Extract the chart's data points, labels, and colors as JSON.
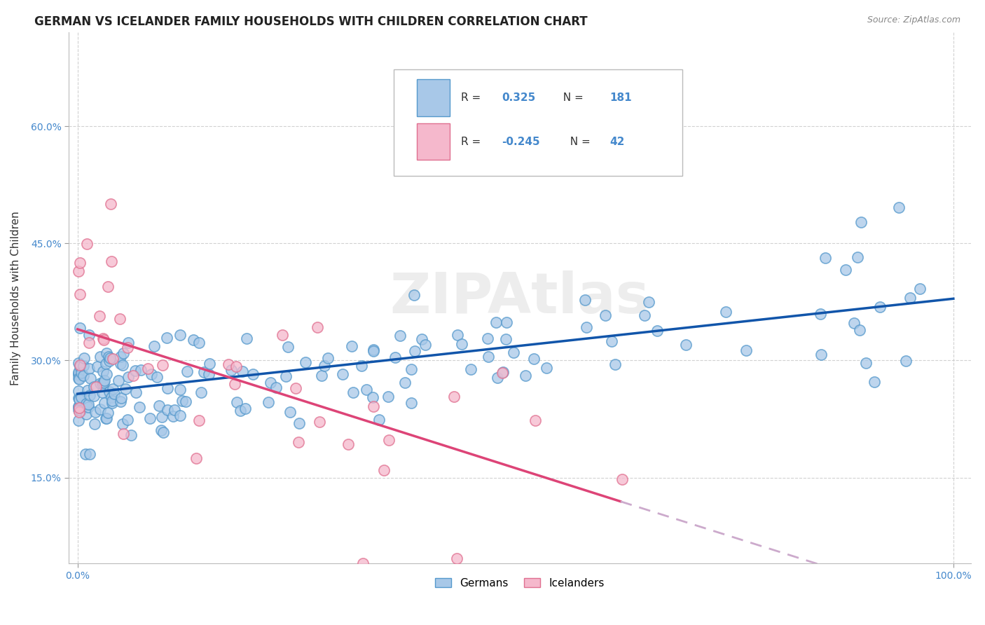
{
  "title": "GERMAN VS ICELANDER FAMILY HOUSEHOLDS WITH CHILDREN CORRELATION CHART",
  "source": "Source: ZipAtlas.com",
  "ylabel": "Family Households with Children",
  "xlim": [
    -0.01,
    1.02
  ],
  "ylim": [
    0.04,
    0.72
  ],
  "ytick_labels": [
    "15.0%",
    "30.0%",
    "45.0%",
    "60.0%"
  ],
  "ytick_values": [
    0.15,
    0.3,
    0.45,
    0.6
  ],
  "legend1_r": "0.325",
  "legend1_n": "181",
  "legend2_r": "-0.245",
  "legend2_n": "42",
  "german_face_color": "#a8c8e8",
  "german_edge_color": "#5599cc",
  "icelander_face_color": "#f5b8cc",
  "icelander_edge_color": "#e07090",
  "german_line_color": "#1155aa",
  "icelander_line_color": "#dd4477",
  "icelander_dash_color": "#ccaacc",
  "grid_color": "#cccccc",
  "tick_color": "#4488cc",
  "title_fontsize": 12,
  "axis_label_fontsize": 11,
  "tick_fontsize": 10,
  "dot_size": 120,
  "watermark_text": "ZIPAtlas"
}
